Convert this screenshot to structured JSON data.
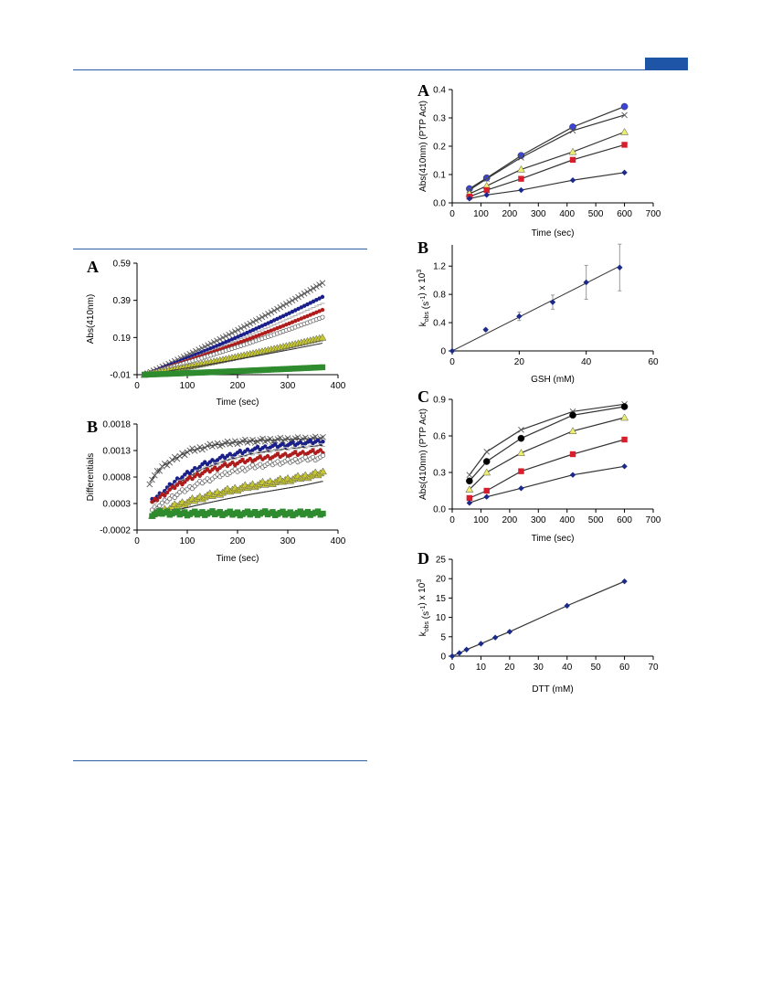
{
  "colors": {
    "rule": "#2d5fa6",
    "tab": "#1f55a6"
  },
  "chart_data": [
    {
      "panel": "A",
      "type": "scatter",
      "xlabel": "Time (sec)",
      "ylabel": "Abs(410nm)",
      "xlim": [
        0,
        400
      ],
      "ylim": [
        -0.01,
        0.59
      ],
      "xticks": [
        0,
        100,
        200,
        300,
        400
      ],
      "yticks": [
        -0.01,
        0.19,
        0.39,
        0.59
      ],
      "series": [
        {
          "marker": "x",
          "color": "#555555",
          "x": [
            15,
            370
          ],
          "y": [
            -0.01,
            0.485
          ]
        },
        {
          "marker": "dot",
          "color": "#1a1f8a",
          "x": [
            15,
            370
          ],
          "y": [
            -0.01,
            0.41
          ]
        },
        {
          "marker": "dash",
          "color": "#aaaaaa",
          "x": [
            15,
            370
          ],
          "y": [
            -0.01,
            0.375
          ]
        },
        {
          "marker": "dot",
          "color": "#b01c1c",
          "x": [
            15,
            370
          ],
          "y": [
            -0.01,
            0.34
          ]
        },
        {
          "marker": "circle-open",
          "color": "#666666",
          "x": [
            15,
            370
          ],
          "y": [
            -0.01,
            0.3
          ]
        },
        {
          "marker": "triangle",
          "color": "#c8c832",
          "x": [
            15,
            370
          ],
          "y": [
            -0.01,
            0.19
          ]
        },
        {
          "marker": "line",
          "color": "#333333",
          "x": [
            15,
            370
          ],
          "y": [
            -0.01,
            0.16
          ]
        },
        {
          "marker": "square",
          "color": "#2e8b2e",
          "x": [
            15,
            370
          ],
          "y": [
            -0.01,
            0.03
          ]
        }
      ]
    },
    {
      "panel": "B",
      "type": "scatter",
      "xlabel": "Time (sec)",
      "ylabel": "Differentials",
      "xlim": [
        0,
        400
      ],
      "ylim": [
        -0.0002,
        0.0018
      ],
      "xticks": [
        0,
        100,
        200,
        300,
        400
      ],
      "yticks": [
        -0.0002,
        0.0003,
        0.0008,
        0.0013,
        0.0018
      ],
      "series": [
        {
          "marker": "x",
          "color": "#555555",
          "x": [
            25,
            50,
            100,
            150,
            200,
            250,
            300,
            370
          ],
          "y": [
            0.0007,
            0.001,
            0.00128,
            0.0014,
            0.00146,
            0.00149,
            0.00151,
            0.00153
          ]
        },
        {
          "marker": "dot",
          "color": "#1a1f8a",
          "x": [
            30,
            80,
            130,
            180,
            230,
            280,
            330,
            370
          ],
          "y": [
            0.00035,
            0.00075,
            0.00103,
            0.0012,
            0.00132,
            0.00139,
            0.00144,
            0.00148
          ]
        },
        {
          "marker": "dash",
          "color": "#aaaaaa",
          "x": [
            30,
            80,
            130,
            180,
            230,
            280,
            330,
            370
          ],
          "y": [
            0.0003,
            0.00068,
            0.00095,
            0.00112,
            0.00124,
            0.00131,
            0.00136,
            0.0014
          ]
        },
        {
          "marker": "dot",
          "color": "#b01c1c",
          "x": [
            30,
            80,
            130,
            180,
            230,
            280,
            330,
            370
          ],
          "y": [
            0.00032,
            0.00065,
            0.00088,
            0.00103,
            0.00113,
            0.0012,
            0.00125,
            0.00129
          ]
        },
        {
          "marker": "circle-open",
          "color": "#666666",
          "x": [
            30,
            80,
            130,
            180,
            230,
            280,
            330,
            370
          ],
          "y": [
            0.00018,
            0.00048,
            0.00071,
            0.00088,
            0.00099,
            0.00107,
            0.00113,
            0.00117
          ]
        },
        {
          "marker": "triangle",
          "color": "#c8c832",
          "x": [
            30,
            80,
            130,
            180,
            230,
            280,
            330,
            370
          ],
          "y": [
            8e-05,
            0.00027,
            0.00042,
            0.00054,
            0.00064,
            0.00072,
            0.0008,
            0.00088
          ]
        },
        {
          "marker": "line",
          "color": "#333333",
          "x": [
            30,
            80,
            130,
            180,
            230,
            280,
            330,
            370
          ],
          "y": [
            5e-05,
            0.00018,
            0.00029,
            0.00039,
            0.00048,
            0.00056,
            0.00064,
            0.00072
          ]
        },
        {
          "marker": "square",
          "color": "#2e8b2e",
          "x": [
            30,
            50,
            100,
            150,
            200,
            250,
            300,
            350,
            370
          ],
          "y": [
            0.0001,
            0.00013,
            0.00011,
            0.00012,
            0.00011,
            0.00012,
            0.00011,
            0.00012,
            0.00011
          ]
        }
      ]
    },
    {
      "panel": "A",
      "type": "line",
      "xlabel": "Time (sec)",
      "ylabel": "Abs(410nm) (PTP Act)",
      "xlim": [
        0,
        700
      ],
      "ylim": [
        0,
        0.4
      ],
      "xticks": [
        0,
        100,
        200,
        300,
        400,
        500,
        600,
        700
      ],
      "yticks": [
        0,
        0.1,
        0.2,
        0.3,
        0.4
      ],
      "series": [
        {
          "marker": "circle",
          "color": "#3a44d8",
          "x": [
            60,
            120,
            240,
            420,
            600
          ],
          "y": [
            0.05,
            0.088,
            0.167,
            0.268,
            0.34
          ]
        },
        {
          "marker": "x",
          "color": "#555555",
          "x": [
            60,
            120,
            240,
            420,
            600
          ],
          "y": [
            0.045,
            0.085,
            0.16,
            0.255,
            0.31
          ]
        },
        {
          "marker": "triangle",
          "color": "#eded6e",
          "x": [
            60,
            120,
            240,
            420,
            600
          ],
          "y": [
            0.032,
            0.06,
            0.118,
            0.18,
            0.25
          ]
        },
        {
          "marker": "square",
          "color": "#d81e2c",
          "x": [
            60,
            120,
            240,
            420,
            600
          ],
          "y": [
            0.022,
            0.045,
            0.085,
            0.152,
            0.205
          ]
        },
        {
          "marker": "diamond",
          "color": "#1b2a8a",
          "x": [
            60,
            120,
            240,
            420,
            600
          ],
          "y": [
            0.015,
            0.028,
            0.045,
            0.08,
            0.107
          ]
        }
      ]
    },
    {
      "panel": "B",
      "type": "scatter",
      "xlabel": "GSH (mM)",
      "ylabel": "k_obs (s^-1) x 10^3",
      "xlim": [
        0,
        60
      ],
      "ylim": [
        0,
        1.5
      ],
      "xticks": [
        0,
        20,
        40,
        60
      ],
      "yticks": [
        0,
        0.4,
        0.8,
        1.2
      ],
      "series": [
        {
          "marker": "diamond",
          "color": "#1b2a8a",
          "x": [
            0,
            10,
            20,
            30,
            40,
            50
          ],
          "y": [
            0,
            0.3,
            0.49,
            0.69,
            0.97,
            1.18
          ],
          "err": [
            0,
            0.02,
            0.06,
            0.1,
            0.24,
            0.33
          ]
        }
      ],
      "fit": {
        "x": [
          0,
          50
        ],
        "y": [
          0,
          1.2
        ]
      }
    },
    {
      "panel": "C",
      "type": "line",
      "xlabel": "Time (sec)",
      "ylabel": "Abs(410nm) (PTP Act)",
      "xlim": [
        0,
        700
      ],
      "ylim": [
        0,
        0.9
      ],
      "xticks": [
        0,
        100,
        200,
        300,
        400,
        500,
        600,
        700
      ],
      "yticks": [
        0,
        0.3,
        0.6,
        0.9
      ],
      "series": [
        {
          "marker": "x",
          "color": "#555555",
          "x": [
            60,
            120,
            240,
            420,
            600
          ],
          "y": [
            0.28,
            0.47,
            0.65,
            0.8,
            0.86
          ]
        },
        {
          "marker": "circle",
          "color": "#000000",
          "x": [
            60,
            120,
            240,
            420,
            600
          ],
          "y": [
            0.23,
            0.39,
            0.58,
            0.77,
            0.84
          ]
        },
        {
          "marker": "triangle",
          "color": "#eded6e",
          "x": [
            60,
            120,
            240,
            420,
            600
          ],
          "y": [
            0.16,
            0.3,
            0.46,
            0.64,
            0.75
          ]
        },
        {
          "marker": "square",
          "color": "#d81e2c",
          "x": [
            60,
            120,
            240,
            420,
            600
          ],
          "y": [
            0.09,
            0.15,
            0.31,
            0.45,
            0.57
          ]
        },
        {
          "marker": "diamond",
          "color": "#1b2a8a",
          "x": [
            60,
            120,
            240,
            420,
            600
          ],
          "y": [
            0.05,
            0.1,
            0.17,
            0.28,
            0.35
          ]
        }
      ]
    },
    {
      "panel": "D",
      "type": "line",
      "xlabel": "DTT (mM)",
      "ylabel": "k_obs (s^-1) x 10^3",
      "xlim": [
        0,
        70
      ],
      "ylim": [
        0,
        25
      ],
      "xticks": [
        0,
        10,
        20,
        30,
        40,
        50,
        60,
        70
      ],
      "yticks": [
        0,
        5,
        10,
        15,
        20,
        25
      ],
      "series": [
        {
          "marker": "diamond",
          "color": "#1b2a8a",
          "x": [
            0,
            2.5,
            5,
            10,
            15,
            20,
            40,
            60
          ],
          "y": [
            0,
            0.8,
            1.7,
            3.2,
            4.8,
            6.3,
            13,
            19.3
          ]
        }
      ]
    }
  ]
}
